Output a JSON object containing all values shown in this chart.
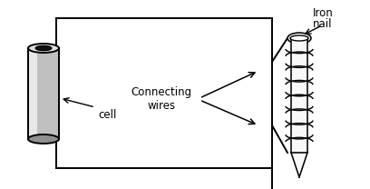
{
  "bg_color": "#ffffff",
  "line_color": "#000000",
  "cell_label": "cell",
  "wires_label": "Connecting\nwires",
  "nail_label_line1": "Iron",
  "nail_label_line2": "nail",
  "label_color_black": "#000000",
  "label_color_orange": "#cc6600",
  "figsize": [
    4.08,
    2.08
  ],
  "dpi": 100
}
